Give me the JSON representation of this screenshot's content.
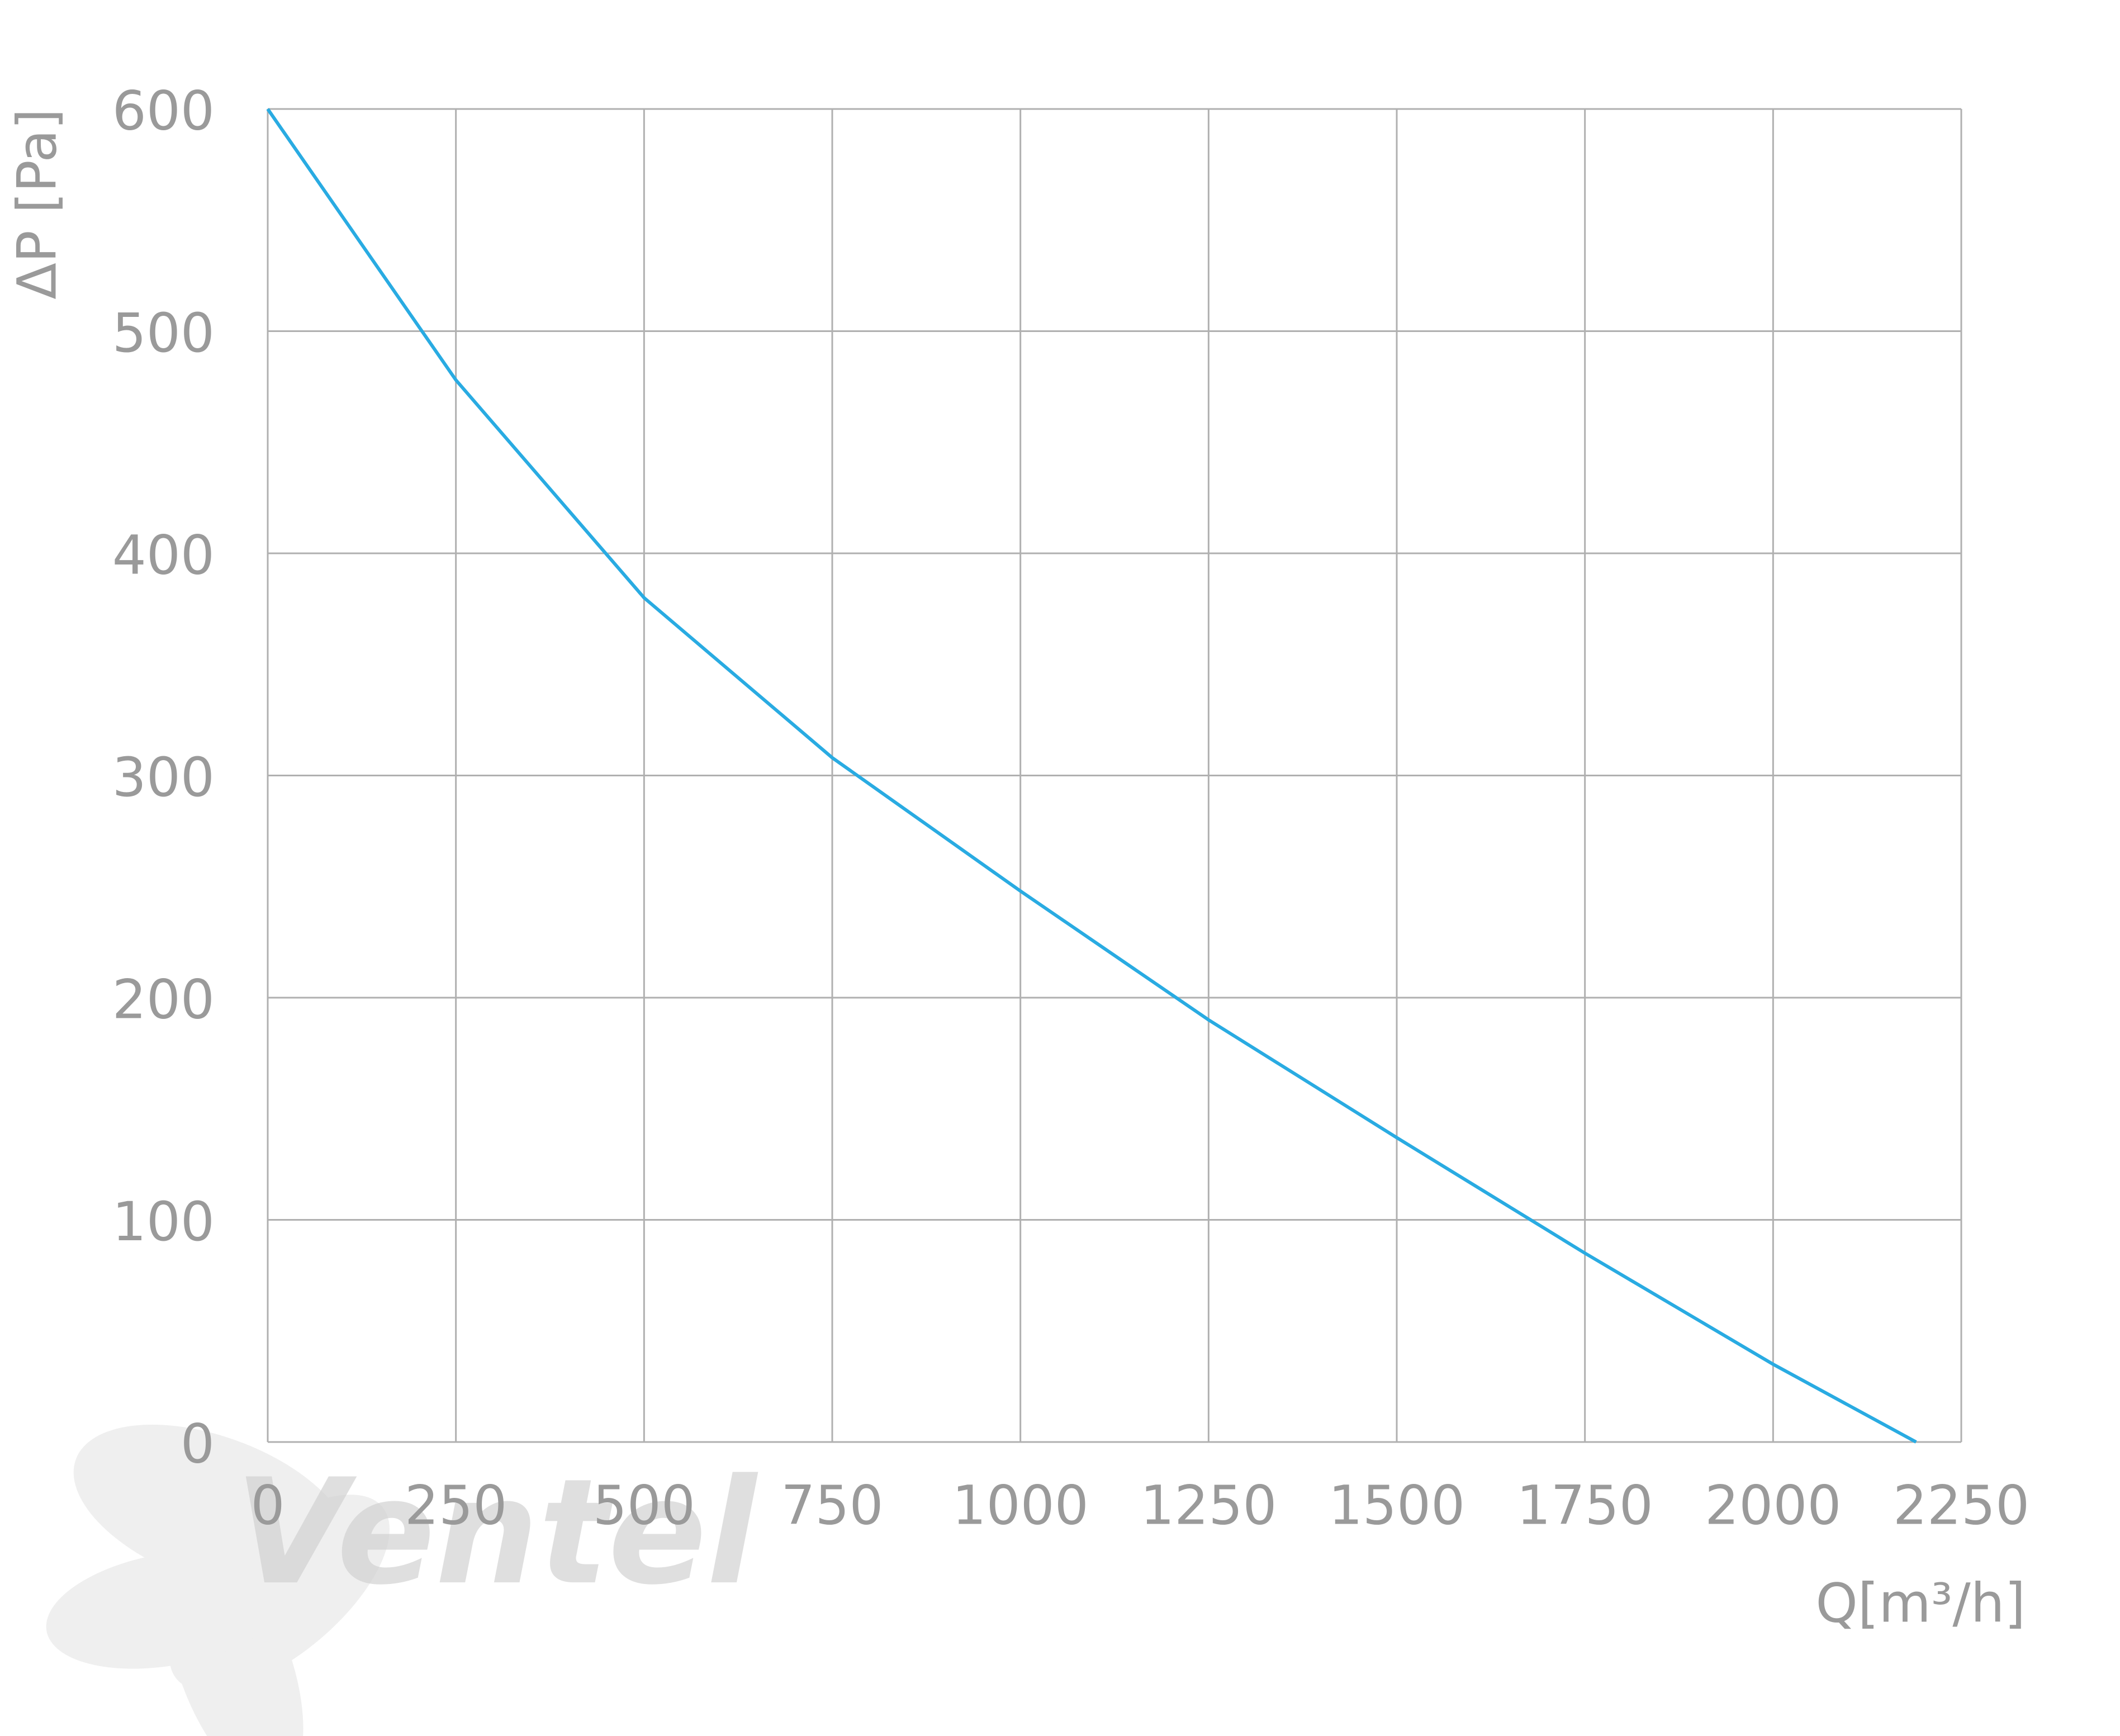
{
  "chart_data": {
    "type": "line",
    "x_label": "Q[m³/h]",
    "y_label": "ΔP [Pa]",
    "watermark": "Ventel",
    "series": [
      {
        "color": "#29abe2",
        "x": [
          0,
          250,
          500,
          750,
          1000,
          1250,
          1500,
          1750,
          2000,
          2190
        ],
        "values": [
          600,
          478,
          380,
          308,
          248,
          190,
          137,
          85,
          35,
          0
        ]
      }
    ],
    "xlim": [
      0,
      2250
    ],
    "xticks": [
      0,
      250,
      500,
      750,
      1000,
      1250,
      1500,
      1750,
      2000,
      2250
    ],
    "ylim": [
      0,
      600
    ],
    "yticks": [
      0,
      100,
      200,
      300,
      400,
      500,
      600
    ],
    "grid": true
  }
}
